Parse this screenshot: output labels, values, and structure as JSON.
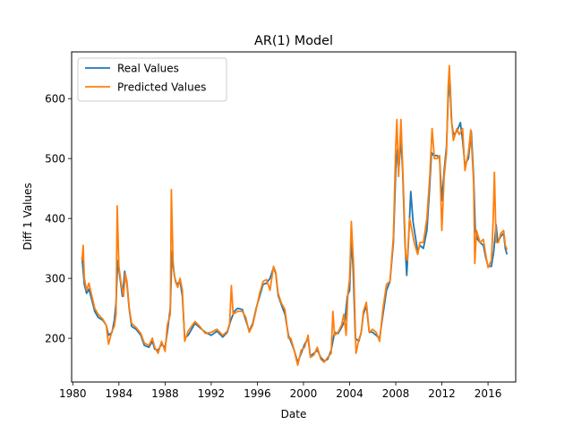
{
  "chart_data": {
    "type": "line",
    "title": "AR(1) Model",
    "xlabel": "Date",
    "ylabel": "Diff 1 Values",
    "xlim": [
      1979.9,
      2018.4
    ],
    "ylim": [
      127,
      678
    ],
    "x_ticks": [
      1980,
      1984,
      1988,
      1992,
      1996,
      2000,
      2004,
      2008,
      2012,
      2016
    ],
    "x_tick_labels": [
      "1980",
      "1984",
      "1988",
      "1992",
      "1996",
      "2000",
      "2004",
      "2008",
      "2012",
      "2016"
    ],
    "y_ticks": [
      200,
      300,
      400,
      500,
      600
    ],
    "y_tick_labels": [
      "200",
      "300",
      "400",
      "500",
      "600"
    ],
    "grid": false,
    "legend_position": "upper-left",
    "series": [
      {
        "name": "Real Values",
        "color": "#1f77b4",
        "points": [
          [
            1980.8,
            335
          ],
          [
            1981.0,
            290
          ],
          [
            1981.2,
            275
          ],
          [
            1981.4,
            282
          ],
          [
            1981.6,
            268
          ],
          [
            1981.9,
            245
          ],
          [
            1982.2,
            235
          ],
          [
            1982.6,
            230
          ],
          [
            1982.9,
            222
          ],
          [
            1983.1,
            205
          ],
          [
            1983.4,
            210
          ],
          [
            1983.6,
            230
          ],
          [
            1983.75,
            260
          ],
          [
            1983.9,
            330
          ],
          [
            1984.1,
            300
          ],
          [
            1984.3,
            270
          ],
          [
            1984.5,
            312
          ],
          [
            1984.7,
            290
          ],
          [
            1984.9,
            248
          ],
          [
            1985.1,
            220
          ],
          [
            1985.5,
            215
          ],
          [
            1985.9,
            205
          ],
          [
            1986.2,
            188
          ],
          [
            1986.6,
            185
          ],
          [
            1986.9,
            195
          ],
          [
            1987.1,
            182
          ],
          [
            1987.4,
            180
          ],
          [
            1987.7,
            190
          ],
          [
            1988.0,
            185
          ],
          [
            1988.2,
            210
          ],
          [
            1988.45,
            250
          ],
          [
            1988.6,
            345
          ],
          [
            1988.8,
            305
          ],
          [
            1989.0,
            290
          ],
          [
            1989.3,
            295
          ],
          [
            1989.5,
            270
          ],
          [
            1989.7,
            200
          ],
          [
            1990.0,
            205
          ],
          [
            1990.3,
            215
          ],
          [
            1990.6,
            225
          ],
          [
            1991.0,
            218
          ],
          [
            1991.5,
            210
          ],
          [
            1992.0,
            205
          ],
          [
            1992.5,
            212
          ],
          [
            1993.0,
            202
          ],
          [
            1993.4,
            210
          ],
          [
            1993.7,
            230
          ],
          [
            1994.0,
            245
          ],
          [
            1994.3,
            250
          ],
          [
            1994.7,
            248
          ],
          [
            1995.0,
            230
          ],
          [
            1995.3,
            212
          ],
          [
            1995.6,
            225
          ],
          [
            1995.9,
            250
          ],
          [
            1996.2,
            270
          ],
          [
            1996.5,
            290
          ],
          [
            1996.8,
            292
          ],
          [
            1997.1,
            300
          ],
          [
            1997.4,
            318
          ],
          [
            1997.6,
            308
          ],
          [
            1997.8,
            272
          ],
          [
            1998.1,
            255
          ],
          [
            1998.4,
            240
          ],
          [
            1998.7,
            205
          ],
          [
            1998.9,
            195
          ],
          [
            1999.2,
            180
          ],
          [
            1999.5,
            160
          ],
          [
            1999.8,
            175
          ],
          [
            2000.1,
            190
          ],
          [
            2000.4,
            200
          ],
          [
            2000.6,
            170
          ],
          [
            2000.9,
            175
          ],
          [
            2001.2,
            180
          ],
          [
            2001.5,
            168
          ],
          [
            2001.8,
            162
          ],
          [
            2002.1,
            165
          ],
          [
            2002.4,
            180
          ],
          [
            2002.7,
            210
          ],
          [
            2003.0,
            208
          ],
          [
            2003.3,
            218
          ],
          [
            2003.6,
            230
          ],
          [
            2003.8,
            270
          ],
          [
            2004.0,
            280
          ],
          [
            2004.15,
            365
          ],
          [
            2004.3,
            320
          ],
          [
            2004.5,
            200
          ],
          [
            2004.8,
            195
          ],
          [
            2005.0,
            210
          ],
          [
            2005.2,
            240
          ],
          [
            2005.45,
            255
          ],
          [
            2005.7,
            210
          ],
          [
            2006.0,
            210
          ],
          [
            2006.3,
            205
          ],
          [
            2006.6,
            200
          ],
          [
            2006.9,
            240
          ],
          [
            2007.2,
            280
          ],
          [
            2007.5,
            295
          ],
          [
            2007.8,
            360
          ],
          [
            2008.0,
            480
          ],
          [
            2008.15,
            515
          ],
          [
            2008.3,
            490
          ],
          [
            2008.45,
            535
          ],
          [
            2008.6,
            480
          ],
          [
            2008.8,
            360
          ],
          [
            2008.95,
            305
          ],
          [
            2009.1,
            360
          ],
          [
            2009.3,
            445
          ],
          [
            2009.5,
            395
          ],
          [
            2009.7,
            370
          ],
          [
            2009.9,
            345
          ],
          [
            2010.1,
            355
          ],
          [
            2010.4,
            350
          ],
          [
            2010.7,
            380
          ],
          [
            2010.9,
            440
          ],
          [
            2011.1,
            510
          ],
          [
            2011.3,
            505
          ],
          [
            2011.6,
            505
          ],
          [
            2011.8,
            500
          ],
          [
            2012.0,
            430
          ],
          [
            2012.2,
            480
          ],
          [
            2012.4,
            520
          ],
          [
            2012.55,
            600
          ],
          [
            2012.7,
            630
          ],
          [
            2012.85,
            560
          ],
          [
            2013.0,
            540
          ],
          [
            2013.3,
            545
          ],
          [
            2013.6,
            560
          ],
          [
            2013.8,
            530
          ],
          [
            2014.0,
            490
          ],
          [
            2014.3,
            500
          ],
          [
            2014.55,
            545
          ],
          [
            2014.75,
            470
          ],
          [
            2014.9,
            380
          ],
          [
            2015.1,
            365
          ],
          [
            2015.3,
            360
          ],
          [
            2015.6,
            355
          ],
          [
            2015.8,
            335
          ],
          [
            2016.0,
            320
          ],
          [
            2016.3,
            320
          ],
          [
            2016.5,
            345
          ],
          [
            2016.7,
            390
          ],
          [
            2016.85,
            360
          ],
          [
            2017.1,
            370
          ],
          [
            2017.35,
            375
          ],
          [
            2017.5,
            350
          ],
          [
            2017.65,
            340
          ]
        ]
      },
      {
        "name": "Predicted Values",
        "color": "#ff7f0e",
        "points": [
          [
            1980.8,
            330
          ],
          [
            1980.9,
            355
          ],
          [
            1981.0,
            300
          ],
          [
            1981.2,
            280
          ],
          [
            1981.4,
            292
          ],
          [
            1981.6,
            275
          ],
          [
            1981.9,
            250
          ],
          [
            1982.2,
            240
          ],
          [
            1982.6,
            232
          ],
          [
            1982.9,
            222
          ],
          [
            1983.1,
            190
          ],
          [
            1983.4,
            212
          ],
          [
            1983.6,
            220
          ],
          [
            1983.75,
            240
          ],
          [
            1983.85,
            421
          ],
          [
            1984.0,
            320
          ],
          [
            1984.2,
            290
          ],
          [
            1984.4,
            270
          ],
          [
            1984.55,
            308
          ],
          [
            1984.7,
            295
          ],
          [
            1984.9,
            250
          ],
          [
            1985.1,
            225
          ],
          [
            1985.5,
            218
          ],
          [
            1985.9,
            208
          ],
          [
            1986.2,
            192
          ],
          [
            1986.6,
            188
          ],
          [
            1986.9,
            200
          ],
          [
            1987.1,
            185
          ],
          [
            1987.4,
            175
          ],
          [
            1987.7,
            195
          ],
          [
            1988.0,
            178
          ],
          [
            1988.2,
            222
          ],
          [
            1988.45,
            240
          ],
          [
            1988.55,
            448
          ],
          [
            1988.7,
            320
          ],
          [
            1988.9,
            295
          ],
          [
            1989.1,
            285
          ],
          [
            1989.3,
            300
          ],
          [
            1989.5,
            280
          ],
          [
            1989.7,
            195
          ],
          [
            1990.0,
            212
          ],
          [
            1990.3,
            220
          ],
          [
            1990.6,
            228
          ],
          [
            1991.0,
            220
          ],
          [
            1991.5,
            208
          ],
          [
            1992.0,
            210
          ],
          [
            1992.5,
            215
          ],
          [
            1993.0,
            205
          ],
          [
            1993.4,
            212
          ],
          [
            1993.6,
            225
          ],
          [
            1993.75,
            288
          ],
          [
            1993.9,
            240
          ],
          [
            1994.3,
            245
          ],
          [
            1994.7,
            245
          ],
          [
            1995.0,
            235
          ],
          [
            1995.3,
            210
          ],
          [
            1995.6,
            222
          ],
          [
            1995.9,
            248
          ],
          [
            1996.2,
            275
          ],
          [
            1996.5,
            295
          ],
          [
            1996.8,
            298
          ],
          [
            1997.1,
            280
          ],
          [
            1997.4,
            320
          ],
          [
            1997.6,
            310
          ],
          [
            1997.8,
            275
          ],
          [
            1998.1,
            258
          ],
          [
            1998.4,
            248
          ],
          [
            1998.7,
            200
          ],
          [
            1998.9,
            200
          ],
          [
            1999.2,
            180
          ],
          [
            1999.5,
            155
          ],
          [
            1999.8,
            180
          ],
          [
            2000.1,
            185
          ],
          [
            2000.4,
            205
          ],
          [
            2000.6,
            168
          ],
          [
            2000.9,
            172
          ],
          [
            2001.2,
            185
          ],
          [
            2001.5,
            165
          ],
          [
            2001.8,
            160
          ],
          [
            2002.1,
            168
          ],
          [
            2002.4,
            175
          ],
          [
            2002.55,
            245
          ],
          [
            2002.7,
            205
          ],
          [
            2003.0,
            210
          ],
          [
            2003.3,
            222
          ],
          [
            2003.5,
            240
          ],
          [
            2003.7,
            205
          ],
          [
            2003.85,
            275
          ],
          [
            2004.0,
            300
          ],
          [
            2004.15,
            395
          ],
          [
            2004.35,
            320
          ],
          [
            2004.55,
            175
          ],
          [
            2004.8,
            198
          ],
          [
            2005.0,
            208
          ],
          [
            2005.2,
            245
          ],
          [
            2005.45,
            260
          ],
          [
            2005.7,
            210
          ],
          [
            2006.0,
            215
          ],
          [
            2006.3,
            210
          ],
          [
            2006.6,
            195
          ],
          [
            2006.9,
            250
          ],
          [
            2007.2,
            290
          ],
          [
            2007.5,
            295
          ],
          [
            2007.8,
            370
          ],
          [
            2008.0,
            520
          ],
          [
            2008.1,
            565
          ],
          [
            2008.25,
            470
          ],
          [
            2008.45,
            565
          ],
          [
            2008.65,
            460
          ],
          [
            2008.85,
            340
          ],
          [
            2009.0,
            330
          ],
          [
            2009.2,
            400
          ],
          [
            2009.4,
            380
          ],
          [
            2009.6,
            360
          ],
          [
            2009.9,
            340
          ],
          [
            2010.1,
            360
          ],
          [
            2010.4,
            360
          ],
          [
            2010.7,
            400
          ],
          [
            2010.95,
            470
          ],
          [
            2011.15,
            550
          ],
          [
            2011.35,
            500
          ],
          [
            2011.6,
            500
          ],
          [
            2011.8,
            505
          ],
          [
            2012.0,
            380
          ],
          [
            2012.2,
            470
          ],
          [
            2012.4,
            510
          ],
          [
            2012.55,
            620
          ],
          [
            2012.65,
            655
          ],
          [
            2012.8,
            570
          ],
          [
            2013.0,
            530
          ],
          [
            2013.3,
            550
          ],
          [
            2013.5,
            540
          ],
          [
            2013.8,
            550
          ],
          [
            2014.0,
            480
          ],
          [
            2014.3,
            510
          ],
          [
            2014.5,
            548
          ],
          [
            2014.75,
            460
          ],
          [
            2014.85,
            325
          ],
          [
            2015.0,
            380
          ],
          [
            2015.3,
            360
          ],
          [
            2015.6,
            365
          ],
          [
            2015.8,
            340
          ],
          [
            2016.0,
            318
          ],
          [
            2016.3,
            330
          ],
          [
            2016.45,
            400
          ],
          [
            2016.55,
            477
          ],
          [
            2016.7,
            360
          ],
          [
            2016.9,
            360
          ],
          [
            2017.1,
            375
          ],
          [
            2017.35,
            380
          ],
          [
            2017.5,
            355
          ],
          [
            2017.65,
            348
          ]
        ]
      }
    ]
  }
}
